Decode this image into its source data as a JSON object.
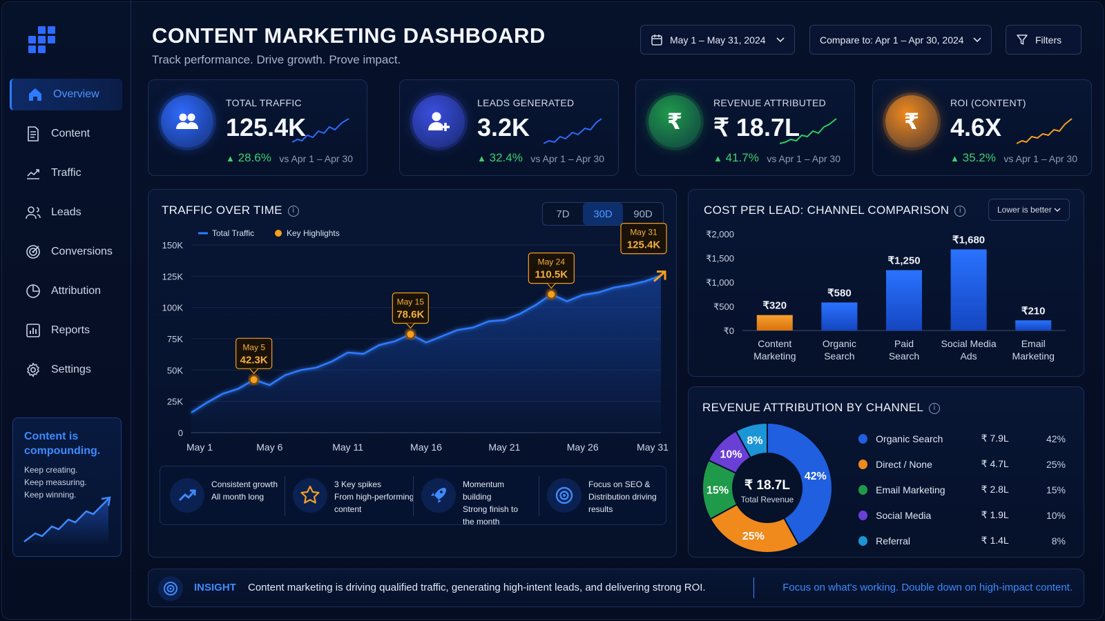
{
  "sidebar": {
    "items": [
      {
        "label": "Overview",
        "icon": "home-icon",
        "active": true
      },
      {
        "label": "Content",
        "icon": "document-icon"
      },
      {
        "label": "Traffic",
        "icon": "trend-icon"
      },
      {
        "label": "Leads",
        "icon": "users-icon"
      },
      {
        "label": "Conversions",
        "icon": "target-icon"
      },
      {
        "label": "Attribution",
        "icon": "pie-icon"
      },
      {
        "label": "Reports",
        "icon": "bar-report-icon"
      },
      {
        "label": "Settings",
        "icon": "gear-icon"
      }
    ],
    "promo": {
      "title": "Content is compounding.",
      "lines": "Keep creating.\nKeep measuring.\nKeep winning."
    }
  },
  "header": {
    "title": "CONTENT MARKETING DASHBOARD",
    "subtitle": "Track performance. Drive growth. Prove impact.",
    "date_range": "May 1 – May 31, 2024",
    "compare": "Compare to: Apr 1 – Apr 30, 2024",
    "filters": "Filters"
  },
  "kpis": [
    {
      "label": "TOTAL TRAFFIC",
      "value": "125.4K",
      "change": "28.6%",
      "compare": "vs Apr 1 – Apr 30",
      "color": "#2f6bff"
    },
    {
      "label": "LEADS GENERATED",
      "value": "3.2K",
      "change": "32.4%",
      "compare": "vs Apr 1 – Apr 30",
      "color": "#3b4fe0"
    },
    {
      "label": "REVENUE ATTRIBUTED",
      "value": "₹ 18.7L",
      "change": "41.7%",
      "compare": "vs Apr 1 – Apr 30",
      "color": "#1f9a4a"
    },
    {
      "label": "ROI (CONTENT)",
      "value": "4.6X",
      "change": "35.2%",
      "compare": "vs Apr 1 – Apr 30",
      "color": "#f08a1c"
    }
  ],
  "traffic": {
    "title": "TRAFFIC OVER TIME",
    "tabs": [
      "7D",
      "30D",
      "90D"
    ],
    "active_tab": "30D",
    "legend": {
      "line": "Total Traffic",
      "points": "Key Highlights"
    },
    "highlights_panel": [
      {
        "title": "Consistent growth",
        "text": "All month long",
        "icon": "trend-up-icon"
      },
      {
        "title": "3 Key spikes",
        "text": "From high-performing content",
        "icon": "star-icon"
      },
      {
        "title": "Momentum building",
        "text": "Strong finish to the month",
        "icon": "rocket-icon"
      },
      {
        "title": "Focus on SEO &",
        "text": "Distribution driving results",
        "icon": "target-icon"
      }
    ]
  },
  "cpl": {
    "title": "COST PER LEAD: CHANNEL COMPARISON",
    "select": "Lower is better"
  },
  "revenue": {
    "title": "REVENUE ATTRIBUTION BY CHANNEL",
    "center_value": "₹ 18.7L",
    "center_label": "Total Revenue",
    "rows": [
      {
        "name": "Organic Search",
        "amount": "₹ 7.9L",
        "pct": "42%",
        "color": "#1f5fe0"
      },
      {
        "name": "Direct / None",
        "amount": "₹ 4.7L",
        "pct": "25%",
        "color": "#f08a1c"
      },
      {
        "name": "Email Marketing",
        "amount": "₹ 2.8L",
        "pct": "15%",
        "color": "#1f9a4a"
      },
      {
        "name": "Social Media",
        "amount": "₹ 1.9L",
        "pct": "10%",
        "color": "#6a3fd6"
      },
      {
        "name": "Referral",
        "amount": "₹ 1.4L",
        "pct": "8%",
        "color": "#1b95d6"
      }
    ]
  },
  "insight": {
    "label": "INSIGHT",
    "text": "Content marketing is driving qualified traffic, generating high-intent leads, and delivering strong ROI.",
    "cta": "Focus on what's working. Double down on high-impact content."
  },
  "chart_data": [
    {
      "type": "line",
      "title": "TRAFFIC OVER TIME",
      "x_ticks": [
        "May 1",
        "May 6",
        "May 11",
        "May 16",
        "May 21",
        "May 26",
        "May 31"
      ],
      "y_ticks": [
        "0",
        "25K",
        "50K",
        "75K",
        "100K",
        "125K",
        "150K"
      ],
      "ylim": [
        0,
        150000
      ],
      "series": [
        {
          "name": "Total Traffic",
          "x": [
            1,
            2,
            3,
            4,
            5,
            6,
            7,
            8,
            9,
            10,
            11,
            12,
            13,
            14,
            15,
            16,
            17,
            18,
            19,
            20,
            21,
            22,
            23,
            24,
            25,
            26,
            27,
            28,
            29,
            30,
            31
          ],
          "values": [
            16000,
            24000,
            31000,
            35000,
            42300,
            38000,
            46000,
            50000,
            52000,
            57000,
            64000,
            63000,
            70000,
            73000,
            78600,
            72000,
            77000,
            82000,
            84000,
            89000,
            90000,
            95000,
            102000,
            110500,
            105000,
            110000,
            112000,
            116000,
            118000,
            121000,
            125400
          ]
        }
      ],
      "highlights": [
        {
          "x": 5,
          "day": "May 5",
          "label": "42.3K",
          "value": 42300
        },
        {
          "x": 15,
          "day": "May 15",
          "label": "78.6K",
          "value": 78600
        },
        {
          "x": 24,
          "day": "May 24",
          "label": "110.5K",
          "value": 110500
        },
        {
          "x": 31,
          "day": "May 31",
          "label": "125.4K",
          "value": 125400
        }
      ]
    },
    {
      "type": "bar",
      "title": "COST PER LEAD: CHANNEL COMPARISON",
      "categories": [
        "Content Marketing",
        "Organic Search",
        "Paid Search",
        "Social Media Ads",
        "Email Marketing"
      ],
      "values": [
        320,
        580,
        1250,
        1680,
        210
      ],
      "labels": [
        "₹320",
        "₹580",
        "₹1,250",
        "₹1,680",
        "₹210"
      ],
      "y_ticks": [
        "₹0",
        "₹500",
        "₹1,000",
        "₹1,500",
        "₹2,000"
      ],
      "ylim": [
        0,
        2000
      ],
      "colors": [
        "#f08a1c",
        "#1f5fe0",
        "#1f5fe0",
        "#1f5fe0",
        "#1f5fe0"
      ]
    },
    {
      "type": "pie",
      "title": "REVENUE ATTRIBUTION BY CHANNEL",
      "categories": [
        "Organic Search",
        "Direct / None",
        "Email Marketing",
        "Social Media",
        "Referral"
      ],
      "values": [
        42,
        25,
        15,
        10,
        8
      ],
      "labels": [
        "42%",
        "25%",
        "15%",
        "10%",
        "8%"
      ],
      "colors": [
        "#1f5fe0",
        "#f08a1c",
        "#1f9a4a",
        "#6a3fd6",
        "#1b95d6"
      ]
    }
  ]
}
